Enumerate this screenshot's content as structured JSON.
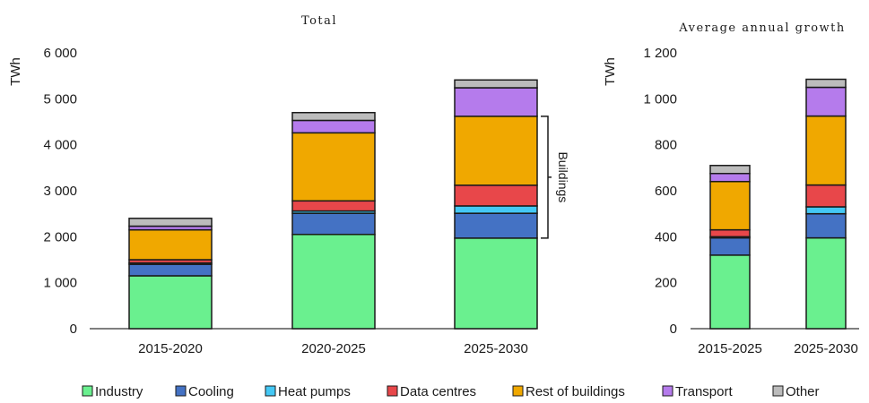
{
  "colors": {
    "Industry": "#6af08f",
    "Cooling": "#4472c4",
    "Heat pumps": "#44c8f5",
    "Data centres": "#e8474a",
    "Rest of buildings": "#f0a800",
    "Transport": "#b57bec",
    "Other": "#bcbcbc"
  },
  "chart_data": [
    {
      "type": "bar",
      "stacked": true,
      "title": "Total",
      "ylabel": "TWh",
      "ylim": [
        0,
        6000
      ],
      "yticks": [
        0,
        1000,
        2000,
        3000,
        4000,
        5000,
        6000
      ],
      "ytick_labels": [
        "0",
        "1 000",
        "2 000",
        "3 000",
        "4 000",
        "5 000",
        "6 000"
      ],
      "categories": [
        "2015-2020",
        "2020-2025",
        "2025-2030"
      ],
      "series": [
        {
          "name": "Industry",
          "values": [
            1150,
            2050,
            1970
          ]
        },
        {
          "name": "Cooling",
          "values": [
            250,
            460,
            540
          ]
        },
        {
          "name": "Heat pumps",
          "values": [
            30,
            50,
            160
          ]
        },
        {
          "name": "Data centres",
          "values": [
            70,
            220,
            450
          ]
        },
        {
          "name": "Rest of buildings",
          "values": [
            650,
            1480,
            1500
          ]
        },
        {
          "name": "Transport",
          "values": [
            80,
            270,
            620
          ]
        },
        {
          "name": "Other",
          "values": [
            170,
            170,
            170
          ]
        }
      ],
      "annotations": [
        {
          "text": "Buildings",
          "spans_category": "2025-2030",
          "from": 1970,
          "to": 4620
        }
      ]
    },
    {
      "type": "bar",
      "stacked": true,
      "title": "Average annual growth",
      "ylabel": "TWh",
      "ylim": [
        0,
        1200
      ],
      "yticks": [
        0,
        200,
        400,
        600,
        800,
        1000,
        1200
      ],
      "ytick_labels": [
        "0",
        "200",
        "400",
        "600",
        "800",
        "1 000",
        "1 200"
      ],
      "categories": [
        "2015-2025",
        "2025-2030"
      ],
      "series": [
        {
          "name": "Industry",
          "values": [
            320,
            395
          ]
        },
        {
          "name": "Cooling",
          "values": [
            75,
            105
          ]
        },
        {
          "name": "Heat pumps",
          "values": [
            5,
            30
          ]
        },
        {
          "name": "Data centres",
          "values": [
            30,
            95
          ]
        },
        {
          "name": "Rest of buildings",
          "values": [
            210,
            300
          ]
        },
        {
          "name": "Transport",
          "values": [
            35,
            125
          ]
        },
        {
          "name": "Other",
          "values": [
            35,
            35
          ]
        }
      ]
    }
  ],
  "legend": [
    "Industry",
    "Cooling",
    "Heat pumps",
    "Data centres",
    "Rest of buildings",
    "Transport",
    "Other"
  ]
}
